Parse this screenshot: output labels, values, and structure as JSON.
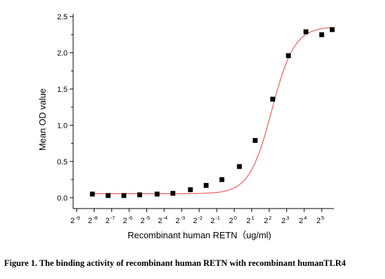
{
  "chart_data": {
    "type": "scatter",
    "title": "",
    "xlabel": "Recombinant human  RETN（ug/ml)",
    "ylabel": "Mean OD value",
    "x_scale": "log2",
    "x_tick_base": "2",
    "x_tick_exponents": [
      -9,
      -8,
      -7,
      -6,
      -5,
      -4,
      -3,
      -2,
      -1,
      0,
      1,
      2,
      3,
      4,
      5
    ],
    "xlim_exponent": [
      -9.2,
      5.7
    ],
    "ylim": [
      -0.15,
      2.5
    ],
    "y_ticks": [
      "0.0",
      "0.5",
      "1.0",
      "1.5",
      "2.0",
      "2.5"
    ],
    "grid": false,
    "series": [
      {
        "name": "",
        "marker_color": "#000000",
        "x_exponent": [
          -8.1,
          -7.2,
          -6.3,
          -5.4,
          -4.4,
          -3.5,
          -2.5,
          -1.6,
          -0.7,
          0.3,
          1.2,
          2.2,
          3.1,
          4.1,
          5.0,
          5.6
        ],
        "y": [
          0.05,
          0.03,
          0.03,
          0.04,
          0.05,
          0.06,
          0.11,
          0.17,
          0.25,
          0.43,
          0.79,
          1.36,
          1.96,
          2.29,
          2.25,
          2.32
        ]
      }
    ],
    "fit_curve": {
      "type": "4PL",
      "color": "#e8423a",
      "bottom": 0.055,
      "top": 2.36,
      "midpoint_exponent": 2.15,
      "slope_per_exponent": 1.55
    }
  },
  "caption": "Figure 1. The binding activity of recombinant human RETN with recombinant humanTLR4"
}
